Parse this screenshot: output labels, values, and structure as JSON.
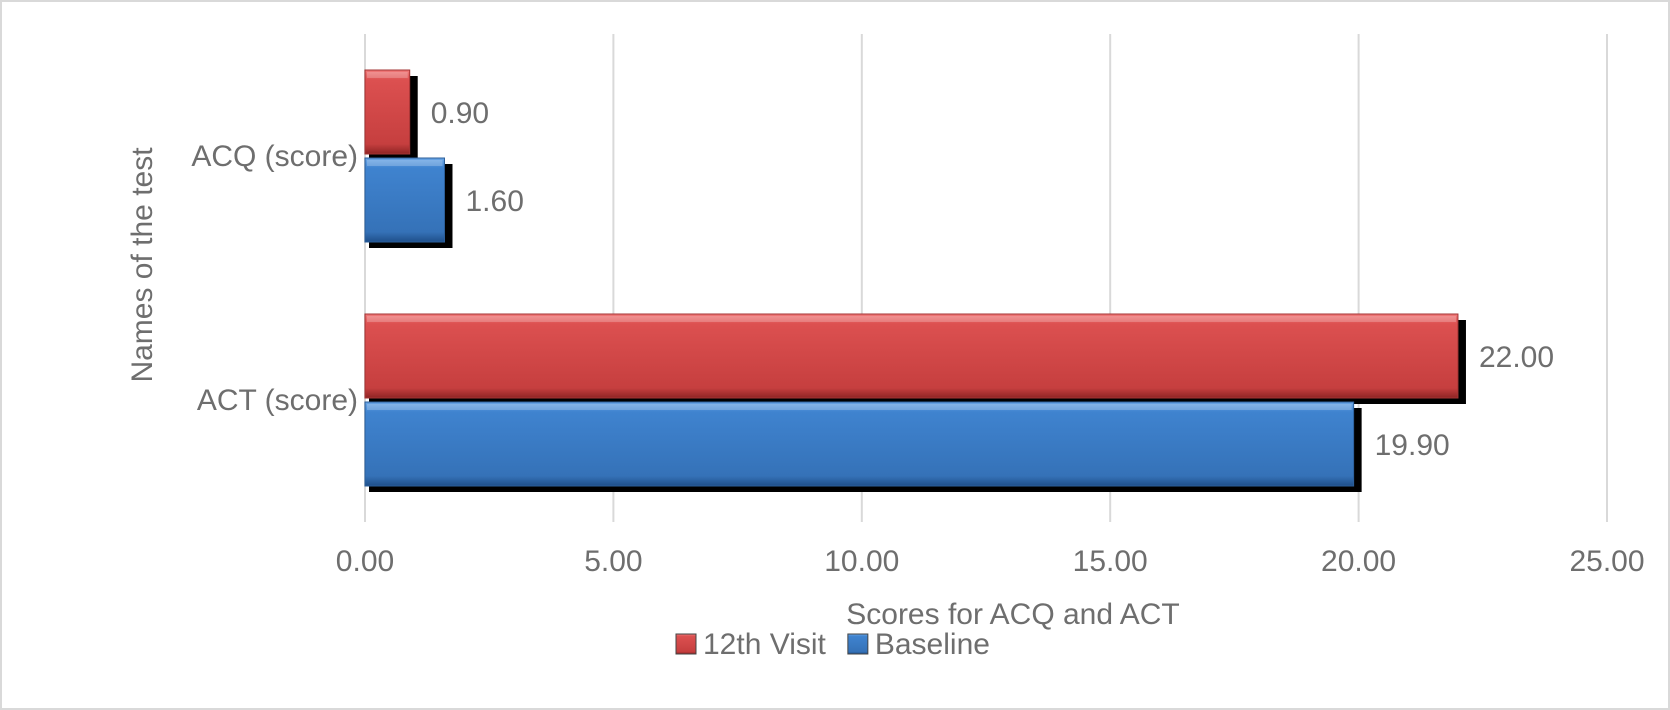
{
  "chart_data": {
    "type": "bar",
    "orientation": "horizontal",
    "categories": [
      "ACT (score)",
      "ACQ (score)"
    ],
    "series": [
      {
        "name": "Baseline",
        "values": [
          19.9,
          1.6
        ],
        "labels": [
          "19.90",
          "1.60"
        ],
        "color": "#3f7fc7"
      },
      {
        "name": "12th Visit",
        "values": [
          22.0,
          0.9
        ],
        "labels": [
          "22.00",
          "0.90"
        ],
        "color": "#d94a4a"
      }
    ],
    "xlabel": "Scores for ACQ and ACT",
    "ylabel": "Names of the test",
    "xlim": [
      0,
      25
    ],
    "xticks": [
      "0.00",
      "5.00",
      "10.00",
      "15.00",
      "20.00",
      "25.00"
    ],
    "grid": true,
    "legend_position": "bottom",
    "legend_order": [
      "12th Visit",
      "Baseline"
    ]
  }
}
